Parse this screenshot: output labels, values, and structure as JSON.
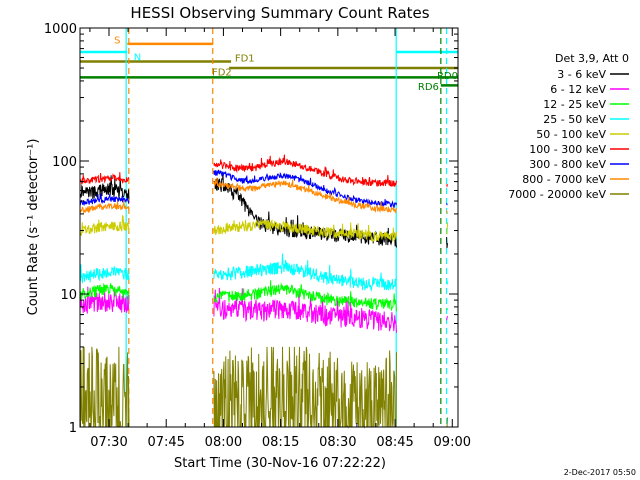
{
  "chart_data": {
    "type": "line",
    "title": "HESSI Observing Summary Count Rates",
    "xlabel": "Start Time (30-Nov-16 07:22:22)",
    "ylabel": "Count Rate (s⁻¹ detector⁻¹)",
    "y_scale": "log",
    "ylim": [
      1,
      1000
    ],
    "xlim_minutes": [
      22.4,
      121.5
    ],
    "x_ticks": [
      {
        "label": "07:30",
        "minutes": 30
      },
      {
        "label": "07:45",
        "minutes": 45
      },
      {
        "label": "08:00",
        "minutes": 60
      },
      {
        "label": "08:15",
        "minutes": 75
      },
      {
        "label": "08:30",
        "minutes": 90
      },
      {
        "label": "08:45",
        "minutes": 105
      },
      {
        "label": "09:00",
        "minutes": 120
      }
    ],
    "y_ticks": [
      {
        "label": "1",
        "value": 1
      },
      {
        "label": "10",
        "value": 10
      },
      {
        "label": "100",
        "value": 100
      },
      {
        "label": "1000",
        "value": 1000
      }
    ],
    "legend_title": "Det 3,9, Att 0",
    "legend_placement": "right",
    "gaps_minutes": [
      [
        35.3,
        57.5
      ],
      [
        105.5,
        118.5
      ]
    ],
    "series": [
      {
        "name": "3 - 6 keV",
        "color": "#000000",
        "x": [
          22.4,
          26,
          30,
          35,
          57.5,
          60,
          64,
          68,
          72,
          76,
          80,
          84,
          88,
          92,
          96,
          100,
          104,
          106,
          110,
          114,
          118
        ],
        "y": [
          60,
          58,
          62,
          55,
          70,
          65,
          55,
          36,
          32,
          30,
          30,
          29,
          28,
          27,
          27,
          26,
          26,
          25,
          25,
          24,
          24
        ]
      },
      {
        "name": "6 - 12 keV",
        "color": "#ff00ff",
        "x": [
          22.4,
          26,
          30,
          35,
          57.5,
          60,
          64,
          68,
          72,
          76,
          80,
          84,
          88,
          92,
          96,
          100,
          104,
          106,
          110,
          114,
          118
        ],
        "y": [
          8.5,
          8.8,
          9,
          8.5,
          8.0,
          7.8,
          7.6,
          7.5,
          7.6,
          8.0,
          7.6,
          7.1,
          6.9,
          6.7,
          6.6,
          6.4,
          6.3,
          6.2,
          6.1,
          6.0,
          6.0
        ]
      },
      {
        "name": "12 - 25 keV",
        "color": "#00ff00",
        "x": [
          22.4,
          26,
          30,
          35,
          57.5,
          60,
          64,
          68,
          72,
          76,
          80,
          84,
          88,
          92,
          96,
          100,
          104,
          106,
          110,
          114,
          118
        ],
        "y": [
          10,
          10.5,
          11,
          10,
          9.5,
          9.5,
          9.8,
          10,
          10.5,
          11,
          10.2,
          9.5,
          9,
          8.8,
          8.6,
          8.5,
          8.3,
          8.2,
          8,
          7.9,
          8
        ]
      },
      {
        "name": "25 - 50 keV",
        "color": "#00ffff",
        "x": [
          22.4,
          26,
          30,
          35,
          57.5,
          60,
          64,
          68,
          72,
          76,
          80,
          84,
          88,
          92,
          96,
          100,
          104,
          106,
          110,
          114,
          118
        ],
        "y": [
          13,
          14,
          15,
          14,
          14,
          14,
          14.5,
          15,
          15.5,
          16,
          15,
          14,
          13,
          12.5,
          12,
          12,
          11.8,
          11.5,
          11.5,
          11.2,
          11.5
        ]
      },
      {
        "name": "50 - 100 keV",
        "color": "#cccc00",
        "x": [
          22.4,
          26,
          30,
          35,
          57.5,
          60,
          64,
          68,
          72,
          76,
          80,
          84,
          88,
          92,
          96,
          100,
          104,
          106,
          110,
          114,
          118
        ],
        "y": [
          30,
          31,
          33,
          32,
          30,
          31,
          32,
          33,
          33,
          32,
          31,
          30,
          29,
          28,
          28,
          27,
          27,
          27,
          27,
          27,
          28
        ]
      },
      {
        "name": "100 - 300 keV",
        "color": "#ff0000",
        "x": [
          22.4,
          26,
          30,
          35,
          57.5,
          60,
          64,
          68,
          72,
          76,
          80,
          84,
          88,
          92,
          96,
          100,
          104,
          106,
          110,
          114,
          118
        ],
        "y": [
          70,
          72,
          75,
          72,
          95,
          92,
          88,
          88,
          95,
          100,
          92,
          85,
          78,
          72,
          70,
          68,
          68,
          67,
          66,
          66,
          68
        ]
      },
      {
        "name": "300 - 800 keV",
        "color": "#0000ff",
        "x": [
          22.4,
          26,
          30,
          35,
          57.5,
          60,
          64,
          68,
          72,
          76,
          80,
          84,
          88,
          92,
          96,
          100,
          104,
          106,
          110,
          114,
          118
        ],
        "y": [
          48,
          50,
          52,
          50,
          82,
          80,
          72,
          70,
          75,
          78,
          72,
          65,
          58,
          54,
          50,
          48,
          47,
          46,
          45,
          45,
          46
        ]
      },
      {
        "name": "800 - 7000 keV",
        "color": "#ff8800",
        "x": [
          22.4,
          26,
          30,
          35,
          57.5,
          60,
          64,
          68,
          72,
          76,
          80,
          84,
          88,
          92,
          96,
          100,
          104,
          106,
          110,
          114,
          118
        ],
        "y": [
          43,
          44,
          46,
          45,
          68,
          66,
          63,
          62,
          66,
          68,
          63,
          58,
          53,
          49,
          46,
          44,
          43,
          42,
          41,
          41,
          42
        ]
      },
      {
        "name": "7000 - 20000 keV",
        "color": "#808000",
        "x": [
          22.4,
          26,
          30,
          35,
          57.5,
          60,
          64,
          68,
          72,
          76,
          80,
          84,
          88,
          92,
          96,
          100,
          104,
          106,
          110,
          114,
          118
        ],
        "y": [
          2.5,
          2.5,
          2.4,
          2.6,
          1.6,
          1.6,
          1.6,
          2.5,
          2.8,
          3.0,
          2.5,
          2.2,
          1.8,
          1.7,
          1.6,
          1.6,
          1.6,
          1.6,
          1.6,
          1.7,
          1.7
        ]
      }
    ],
    "annotations": [
      {
        "text": "S",
        "color": "#ff8800"
      },
      {
        "text": "N",
        "color": "#00ffff"
      },
      {
        "text": "FD1",
        "color": "#808000"
      },
      {
        "text": "FD2",
        "color": "#808000"
      },
      {
        "text": "RD0",
        "color": "#008000"
      },
      {
        "text": "RD6",
        "color": "#008000"
      }
    ],
    "flag_bars": [
      {
        "name": "S",
        "color": "#ff8800",
        "start": 34.8,
        "end": 57.3,
        "level": 760
      },
      {
        "name": "N",
        "color": "#00ffff",
        "start": 22.4,
        "end": 34.8,
        "level": 660
      },
      {
        "name": "N",
        "color": "#00ffff",
        "start": 105.4,
        "end": 121.5,
        "level": 660
      },
      {
        "name": "FD1",
        "color": "#808000",
        "start": 22.4,
        "end": 62.0,
        "level": 560
      },
      {
        "name": "FD2",
        "color": "#808000",
        "start": 61.5,
        "end": 121.5,
        "level": 500
      },
      {
        "name": "RD0",
        "color": "#008000",
        "start": 22.4,
        "end": 121.5,
        "level": 425
      },
      {
        "name": "RD6",
        "color": "#008000",
        "start": 117.0,
        "end": 121.5,
        "level": 370
      }
    ],
    "vertical_markers": [
      {
        "color": "#00ffff",
        "style": "solid",
        "minutes": 34.5
      },
      {
        "color": "#ff8800",
        "style": "dashed",
        "minutes": 35.2
      },
      {
        "color": "#ff8800",
        "style": "dashed",
        "minutes": 57.2
      },
      {
        "color": "#00ffff",
        "style": "solid",
        "minutes": 105.3
      },
      {
        "color": "#00ffff",
        "style": "dashed",
        "minutes": 118.5
      },
      {
        "color": "#008000",
        "style": "dashed",
        "minutes": 117.0
      }
    ]
  },
  "timestamp": "2-Dec-2017 05:50"
}
